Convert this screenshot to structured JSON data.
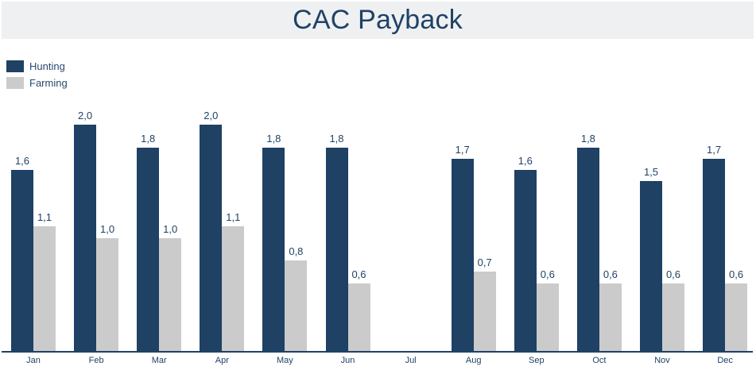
{
  "title": "CAC Payback",
  "legend": [
    {
      "name": "Hunting",
      "color": "#1e4164"
    },
    {
      "name": "Farming",
      "color": "#cbcbcb"
    }
  ],
  "chart_data": {
    "type": "bar",
    "title": "CAC Payback",
    "xlabel": "",
    "ylabel": "",
    "categories": [
      "Jan",
      "Feb",
      "Mar",
      "Apr",
      "May",
      "Jun",
      "Jul",
      "Aug",
      "Sep",
      "Oct",
      "Nov",
      "Dec"
    ],
    "series": [
      {
        "name": "Hunting",
        "color": "#1e4164",
        "values": [
          1.6,
          2.0,
          1.8,
          2.0,
          1.8,
          1.8,
          null,
          1.7,
          1.6,
          1.8,
          1.5,
          1.7
        ]
      },
      {
        "name": "Farming",
        "color": "#cbcbcb",
        "values": [
          1.1,
          1.0,
          1.0,
          1.1,
          0.8,
          0.6,
          null,
          0.7,
          0.6,
          0.6,
          0.6,
          0.6
        ]
      }
    ],
    "labels": {
      "Hunting": [
        "1,6",
        "2,0",
        "1,8",
        "2,0",
        "1,8",
        "1,8",
        "",
        "1,7",
        "1,6",
        "1,8",
        "1,5",
        "1,7"
      ],
      "Farming": [
        "1,1",
        "1,0",
        "1,0",
        "1,1",
        "0,8",
        "0,6",
        "",
        "0,7",
        "0,6",
        "0,6",
        "0,6",
        "0,6"
      ]
    },
    "ylim": [
      0,
      2.0
    ],
    "grid": false,
    "legend_position": "top-left",
    "data_labels": true,
    "decimal_separator": ","
  }
}
